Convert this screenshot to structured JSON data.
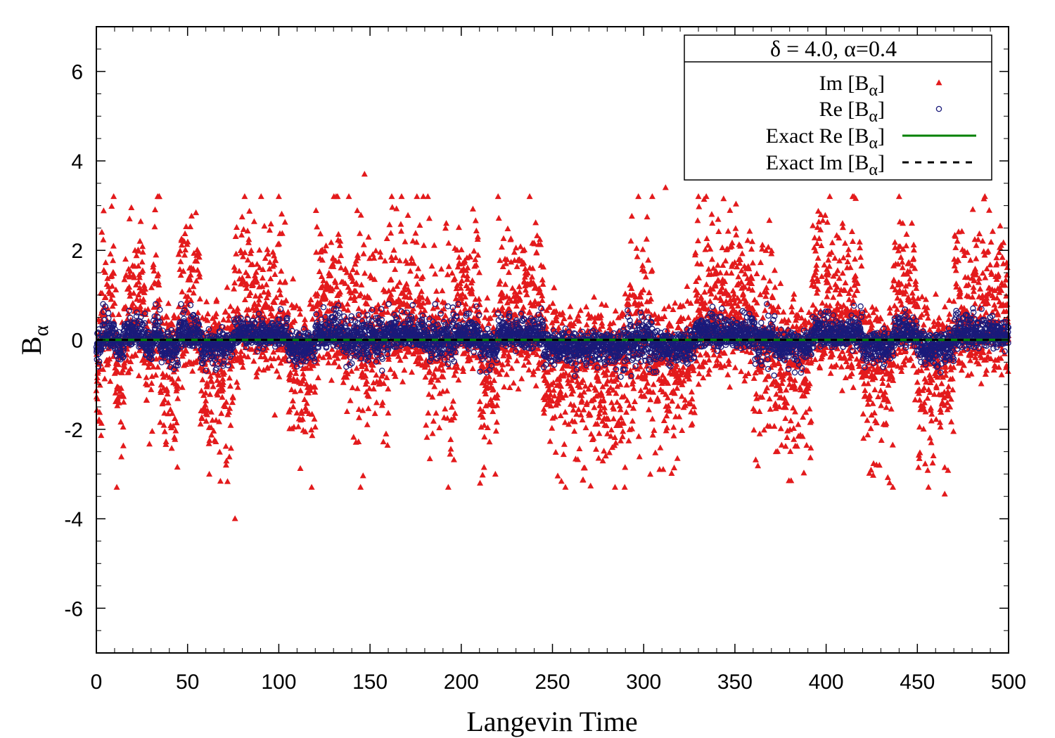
{
  "chart_data": {
    "type": "scatter",
    "title": "",
    "xlabel": "Langevin Time",
    "ylabel": {
      "main": "B",
      "sub": "α"
    },
    "xlim": [
      0,
      500
    ],
    "ylim": [
      -7,
      7
    ],
    "xticks": [
      0,
      50,
      100,
      150,
      200,
      250,
      300,
      350,
      400,
      450,
      500
    ],
    "yticks": [
      -6,
      -4,
      -2,
      0,
      2,
      4,
      6
    ],
    "grid": false,
    "legend_position": "top-right",
    "legend_title": "δ = 4.0, α=0.4",
    "colors": {
      "im": "#e31a1c",
      "re": "#1a1a7a",
      "exact_re": "#008000",
      "exact_im": "#000000"
    },
    "series": [
      {
        "name": "Im [B_α]",
        "label_main": "Im [B",
        "label_sub": "α",
        "label_end": "]",
        "marker": "triangle",
        "color": "#e31a1c",
        "sample_every": 0.1,
        "amplitude": 2.2,
        "extreme_points": [
          [
            147,
            3.7
          ],
          [
            76,
            -4.0
          ],
          [
            312,
            3.4
          ],
          [
            465,
            -3.45
          ]
        ]
      },
      {
        "name": "Re [B_α]",
        "label_main": "Re [B",
        "label_sub": "α",
        "label_end": "]",
        "marker": "open-circle",
        "color": "#1a1a7a",
        "sample_every": 0.1,
        "amplitude": 0.55
      },
      {
        "name": "Exact Re [B_α]",
        "label_main": "Exact Re [B",
        "label_sub": "α",
        "label_end": "]",
        "marker": "line",
        "color": "#008000",
        "x": [
          0,
          500
        ],
        "y": [
          0,
          0
        ]
      },
      {
        "name": "Exact Im [B_α]",
        "label_main": "Exact Im [B",
        "label_sub": "α",
        "label_end": "]",
        "marker": "dashed-line",
        "color": "#000000",
        "x": [
          0,
          500
        ],
        "y": [
          0,
          0
        ]
      }
    ],
    "regimes": [
      [
        0,
        3,
        -1
      ],
      [
        3,
        10,
        1
      ],
      [
        10,
        15,
        -1
      ],
      [
        15,
        27,
        1
      ],
      [
        27,
        31,
        -1
      ],
      [
        31,
        35,
        1
      ],
      [
        35,
        45,
        -1
      ],
      [
        45,
        57,
        1
      ],
      [
        57,
        75,
        -1
      ],
      [
        75,
        105,
        1
      ],
      [
        105,
        120,
        -1
      ],
      [
        120,
        135,
        1
      ],
      [
        135,
        160,
        0
      ],
      [
        160,
        180,
        1
      ],
      [
        180,
        197,
        0
      ],
      [
        197,
        210,
        1
      ],
      [
        210,
        220,
        -1
      ],
      [
        220,
        245,
        1
      ],
      [
        245,
        290,
        -1
      ],
      [
        290,
        305,
        0
      ],
      [
        305,
        328,
        -1
      ],
      [
        328,
        360,
        1
      ],
      [
        360,
        372,
        0
      ],
      [
        372,
        392,
        -1
      ],
      [
        392,
        420,
        1
      ],
      [
        420,
        437,
        -1
      ],
      [
        437,
        450,
        1
      ],
      [
        450,
        470,
        -1
      ],
      [
        470,
        500,
        1
      ]
    ]
  }
}
